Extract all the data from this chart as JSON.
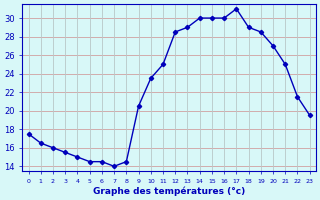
{
  "hours": [
    0,
    1,
    2,
    3,
    4,
    5,
    6,
    7,
    8,
    9,
    10,
    11,
    12,
    13,
    14,
    15,
    16,
    17,
    18,
    19,
    20,
    21,
    22,
    23
  ],
  "temps": [
    17.5,
    16.5,
    16.0,
    15.5,
    15.0,
    14.5,
    14.5,
    14.0,
    14.5,
    20.5,
    23.5,
    25.0,
    28.5,
    29.0,
    30.0,
    30.0,
    30.0,
    31.0,
    29.0,
    28.5,
    27.0,
    25.0,
    21.5,
    19.5
  ],
  "line_color": "#0000bb",
  "bg_color": "#d8f8f8",
  "hgrid_color": "#d0a0a0",
  "vgrid_color": "#b8c8c8",
  "xlabel": "Graphe des températures (°c)",
  "xlabel_color": "#0000bb",
  "ylim": [
    13.5,
    31.5
  ],
  "yticks": [
    14,
    16,
    18,
    20,
    22,
    24,
    26,
    28,
    30
  ],
  "xlim": [
    -0.5,
    23.5
  ],
  "xtick_labels": [
    "0",
    "1",
    "2",
    "3",
    "4",
    "5",
    "6",
    "7",
    "8",
    "9",
    "10",
    "11",
    "12",
    "13",
    "14",
    "15",
    "16",
    "17",
    "18",
    "19",
    "20",
    "21",
    "22",
    "23"
  ]
}
